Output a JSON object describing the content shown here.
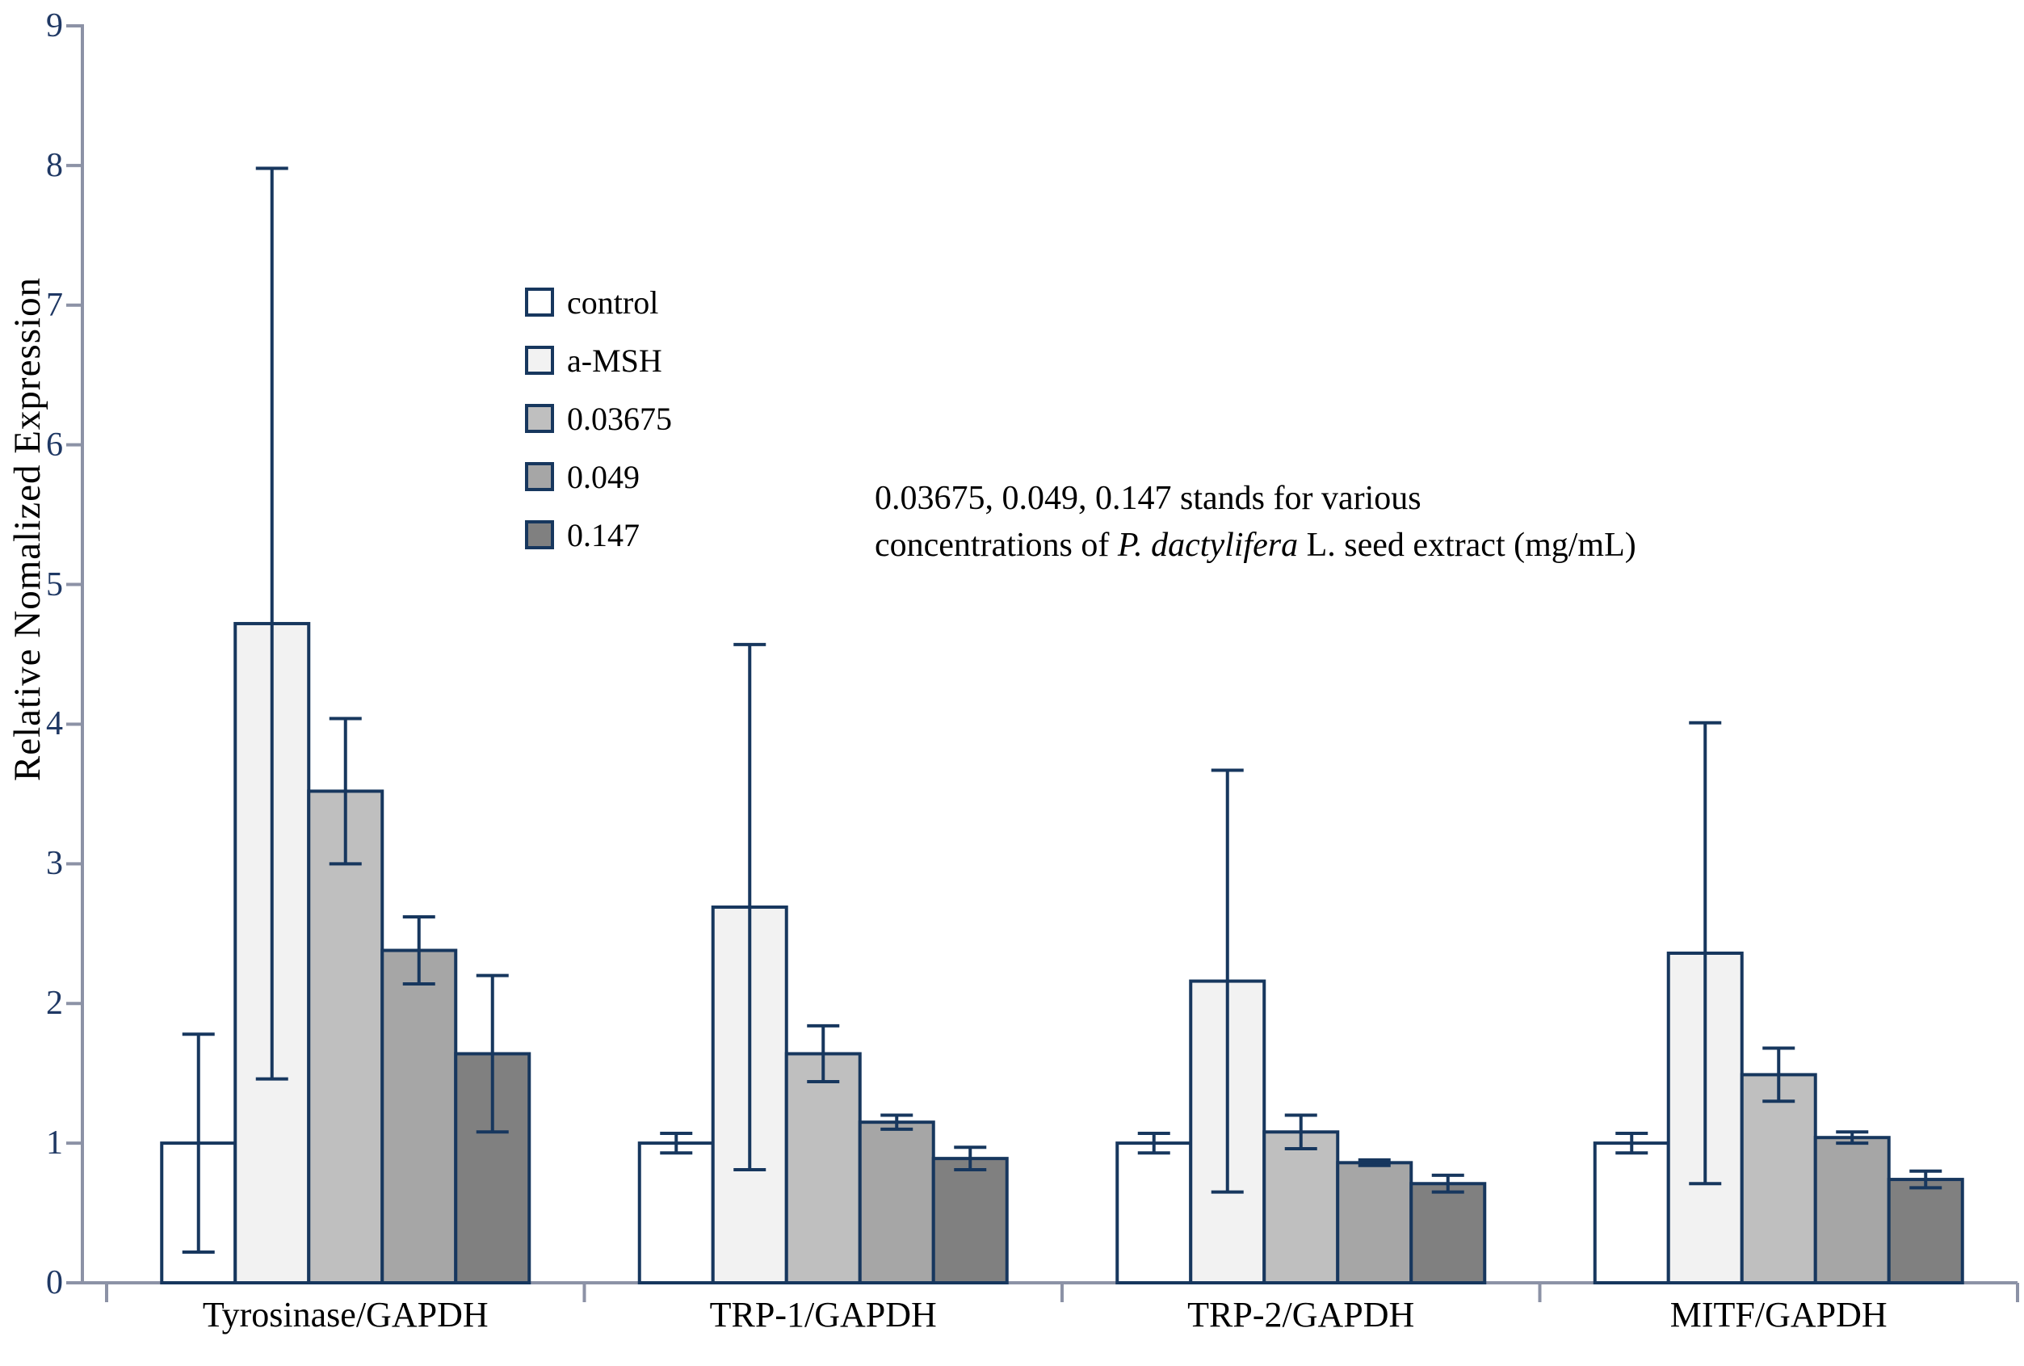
{
  "chart_data": {
    "type": "bar",
    "title": "",
    "categories": [
      "Tyrosinase/GAPDH",
      "TRP-1/GAPDH",
      "TRP-2/GAPDH",
      "MITF/GAPDH"
    ],
    "series": [
      {
        "name": "control",
        "color": "#FFFFFF",
        "values": [
          1.0,
          1.0,
          1.0,
          1.0
        ],
        "errors": [
          0.78,
          0.07,
          0.07,
          0.07
        ]
      },
      {
        "name": "a-MSH",
        "color": "#F2F2F2",
        "values": [
          4.72,
          2.69,
          2.16,
          2.36
        ],
        "errors": [
          3.26,
          1.88,
          1.51,
          1.65
        ]
      },
      {
        "name": "0.03675",
        "color": "#BFBFBF",
        "values": [
          3.52,
          1.64,
          1.08,
          1.49
        ],
        "errors": [
          0.52,
          0.2,
          0.12,
          0.19
        ]
      },
      {
        "name": "0.049",
        "color": "#A6A6A6",
        "values": [
          2.38,
          1.15,
          0.86,
          1.04
        ],
        "errors": [
          0.24,
          0.05,
          0.02,
          0.04
        ]
      },
      {
        "name": "0.147",
        "color": "#808080",
        "values": [
          1.64,
          0.89,
          0.71,
          0.74
        ],
        "errors": [
          0.56,
          0.08,
          0.06,
          0.06
        ]
      }
    ],
    "xlabel": "",
    "ylabel": "Relative Nomalized Expression",
    "ylim": [
      0,
      9
    ],
    "ytick_step": 1,
    "grid": false,
    "legend_position": "inside-upper-left",
    "error_bars": "symmetric",
    "bar_border_color": "#17375E",
    "axis_color": "#8C92A6",
    "tick_label_color": "#1F3864"
  },
  "annotation": {
    "line1": "0.03675, 0.049, 0.147 stands for various",
    "line2_pre": "concentrations of ",
    "line2_italic": "P. dactylifera",
    "line2_post": " L. seed extract (mg/mL)"
  }
}
